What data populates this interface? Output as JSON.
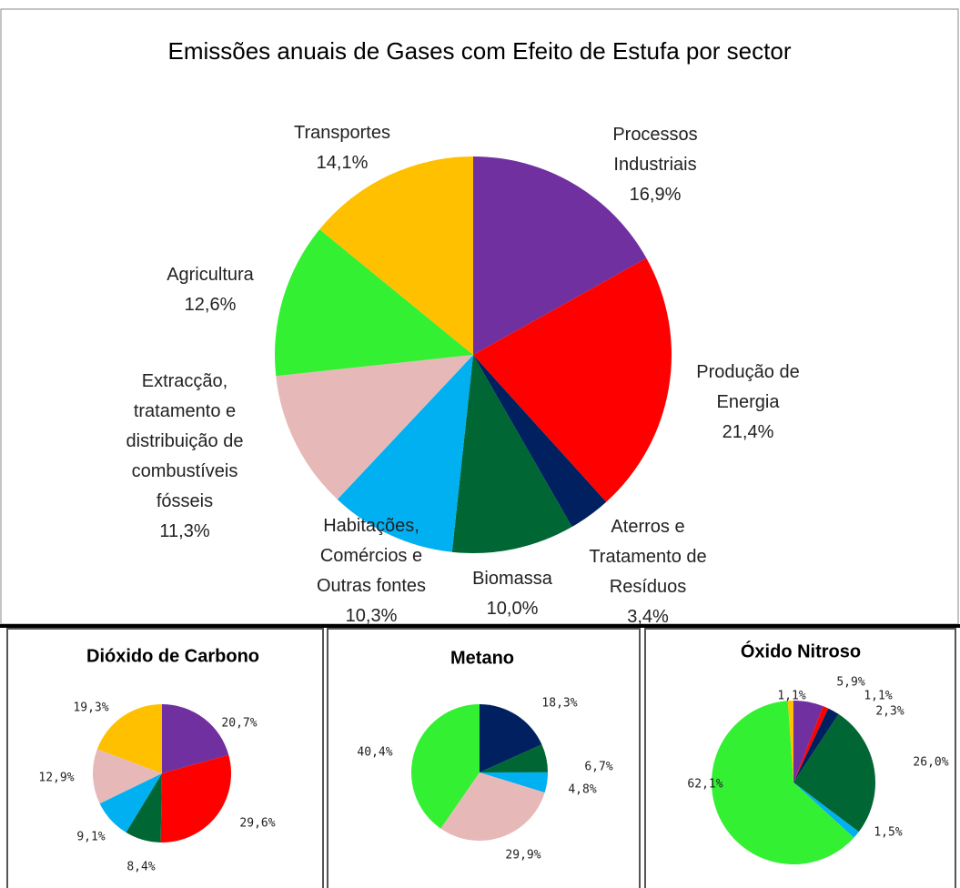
{
  "chart_data": [
    {
      "type": "pie",
      "title": "Emissões anuais de Gases com Efeito de Estufa por sector",
      "categories": [
        "Processos Industriais",
        "Produção de Energia",
        "Aterros e Tratamento de Resíduos",
        "Biomassa",
        "Habitações, Comércios e Outras fontes",
        "Extracção, tratamento e distribuição de combustíveis fósseis",
        "Agricultura",
        "Transportes"
      ],
      "values": [
        16.9,
        21.4,
        3.4,
        10.0,
        10.3,
        11.3,
        12.6,
        14.1
      ],
      "value_labels": [
        "16,9%",
        "21,4%",
        "3,4%",
        "10,0%",
        "10,3%",
        "11,3%",
        "12,6%",
        "14,1%"
      ],
      "colors": [
        "#7030a0",
        "#ff0000",
        "#002060",
        "#006633",
        "#00b0f0",
        "#e6b9b8",
        "#33f033",
        "#ffc000"
      ]
    },
    {
      "type": "pie",
      "title": "Dióxido de Carbono",
      "values": [
        20.7,
        29.6,
        8.4,
        9.1,
        12.9,
        19.3
      ],
      "value_labels": [
        "20,7%",
        "29,6%",
        "8,4%",
        "9,1%",
        "12,9%",
        "19,3%"
      ],
      "colors": [
        "#7030a0",
        "#ff0000",
        "#006633",
        "#00b0f0",
        "#e6b9b8",
        "#ffc000"
      ]
    },
    {
      "type": "pie",
      "title": "Metano",
      "values": [
        18.3,
        6.7,
        4.8,
        29.9,
        40.4
      ],
      "value_labels": [
        "18,3%",
        "6,7%",
        "4,8%",
        "29,9%",
        "40,4%"
      ],
      "colors": [
        "#002060",
        "#006633",
        "#00b0f0",
        "#e6b9b8",
        "#33f033"
      ]
    },
    {
      "type": "pie",
      "title": "Óxido Nitroso",
      "values": [
        5.9,
        1.1,
        2.3,
        26.0,
        1.5,
        62.1,
        1.1
      ],
      "value_labels": [
        "5,9%",
        "1,1%",
        "2,3%",
        "26,0%",
        "1,5%",
        "62,1%",
        "1,1%"
      ],
      "colors": [
        "#7030a0",
        "#ff0000",
        "#002060",
        "#006633",
        "#00b0f0",
        "#33f033",
        "#ffc000"
      ]
    }
  ]
}
